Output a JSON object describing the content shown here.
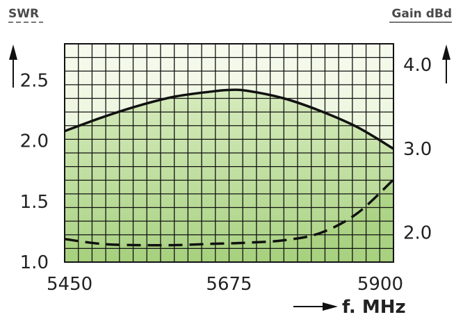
{
  "chart_data": {
    "type": "line",
    "left_axis_label": "SWR",
    "right_axis_label": "Gain dBd",
    "xlabel": "f. MHz",
    "x_ticks": [
      5450,
      5675,
      5900
    ],
    "y_left_ticks": [
      "1.0",
      "1.5",
      "2.0",
      "2.5"
    ],
    "y_right_ticks": [
      "2.0",
      "3.0",
      "4.0"
    ],
    "xlim": [
      5450,
      5900
    ],
    "y_left_lim": [
      1.0,
      2.8
    ],
    "y_right_lim": [
      1.65,
      4.25
    ],
    "grid": true,
    "series": [
      {
        "axis": "right",
        "style": "solid",
        "x": [
          5450,
          5500,
          5550,
          5600,
          5650,
          5675,
          5700,
          5750,
          5800,
          5850,
          5900
        ],
        "y": [
          3.21,
          3.37,
          3.51,
          3.62,
          3.68,
          3.7,
          3.69,
          3.6,
          3.45,
          3.26,
          3.0
        ]
      },
      {
        "axis": "left",
        "style": "dashed",
        "x": [
          5450,
          5500,
          5550,
          5600,
          5650,
          5700,
          5750,
          5800,
          5850,
          5900
        ],
        "y": [
          1.19,
          1.15,
          1.14,
          1.14,
          1.15,
          1.16,
          1.18,
          1.24,
          1.4,
          1.68
        ]
      }
    ],
    "colors": {
      "curve": "#111111",
      "grid": "#111111",
      "fill_top": "#eef7df",
      "fill_bottom": "#b3d88d"
    }
  }
}
